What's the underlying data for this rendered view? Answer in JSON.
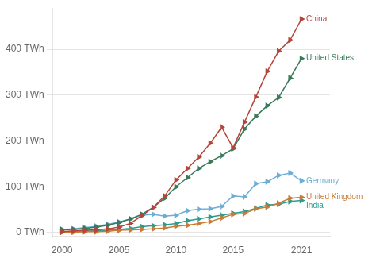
{
  "chart_data": {
    "type": "line",
    "x": [
      2000,
      2001,
      2002,
      2003,
      2004,
      2005,
      2006,
      2007,
      2008,
      2009,
      2010,
      2011,
      2012,
      2013,
      2014,
      2015,
      2016,
      2017,
      2018,
      2019,
      2020,
      2021
    ],
    "series": [
      {
        "name": "China",
        "color": "#b5453a",
        "values": [
          2,
          4,
          5,
          6,
          8,
          12,
          20,
          37,
          55,
          80,
          115,
          140,
          165,
          195,
          230,
          185,
          241,
          296,
          352,
          396,
          420,
          466
        ]
      },
      {
        "name": "United States",
        "color": "#3a7a5a",
        "values": [
          6,
          7,
          9,
          12,
          16,
          22,
          30,
          40,
          55,
          75,
          100,
          120,
          140,
          155,
          168,
          183,
          226,
          254,
          277,
          295,
          337,
          380
        ]
      },
      {
        "name": "Germany",
        "color": "#6baed6",
        "values": [
          7,
          8,
          11,
          14,
          18,
          23,
          30,
          38,
          40,
          36,
          38,
          48,
          51,
          52,
          57,
          80,
          78,
          107,
          111,
          125,
          130,
          113
        ]
      },
      {
        "name": "United Kingdom",
        "color": "#c97b35",
        "values": [
          1,
          1,
          2,
          2,
          3,
          5,
          6,
          7,
          8,
          10,
          14,
          16,
          20,
          24,
          32,
          40,
          42,
          52,
          56,
          64,
          75,
          77
        ]
      },
      {
        "name": "India",
        "color": "#2a9d8f",
        "values": [
          2,
          2,
          3,
          4,
          5,
          7,
          9,
          13,
          15,
          17,
          20,
          26,
          30,
          34,
          38,
          42,
          46,
          53,
          60,
          62,
          68,
          70
        ]
      }
    ],
    "marker": "triangle-right",
    "xlim": [
      1999.2,
      2023.5
    ],
    "xticks": [
      2000,
      2005,
      2010,
      2015,
      2021
    ],
    "ylim": [
      -8,
      490
    ],
    "yticks": [
      {
        "value": 0,
        "label": "0 TWh"
      },
      {
        "value": 100,
        "label": "100 TWh"
      },
      {
        "value": 200,
        "label": "200 TWh"
      },
      {
        "value": 300,
        "label": "300 TWh"
      },
      {
        "value": 400,
        "label": "400 TWh"
      }
    ],
    "grid": "y"
  }
}
